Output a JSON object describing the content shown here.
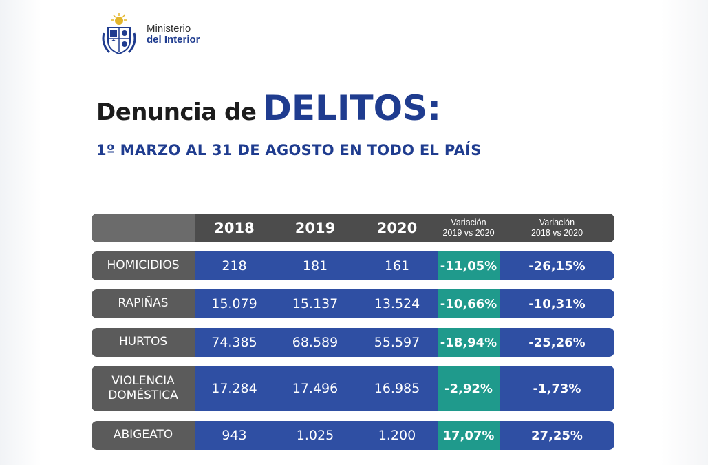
{
  "brand": {
    "line1": "Ministerio",
    "line2": "del Interior"
  },
  "title": {
    "prefix": "Denuncia de",
    "emphasis": "DELITOS:",
    "subtitle": "1º MARZO AL 31 DE AGOSTO EN TODO EL PAÍS"
  },
  "colors": {
    "brand_blue": "#1f3c8f",
    "cell_blue": "#2f4fa3",
    "teal": "#1f9a8c",
    "label_gray": "#5b5b5b",
    "header_gray": "#4c4c4c"
  },
  "chart_data": {
    "type": "table",
    "title": "Denuncia de DELITOS:",
    "subtitle": "1º MARZO AL 31 DE AGOSTO EN TODO EL PAÍS",
    "columns": [
      "2018",
      "2019",
      "2020",
      "Variación 2019 vs 2020",
      "Variación 2018 vs 2020"
    ],
    "header_variacion": "Variación",
    "header_var1_sub": "2019 vs 2020",
    "header_var2_sub": "2018 vs 2020",
    "rows": [
      {
        "label_lines": [
          "HOMICIDIOS"
        ],
        "v2018": "218",
        "v2019": "181",
        "v2020": "161",
        "var_19_20": "-11,05%",
        "var_18_20": "-26,15%"
      },
      {
        "label_lines": [
          "RAPIÑAS"
        ],
        "v2018": "15.079",
        "v2019": "15.137",
        "v2020": "13.524",
        "var_19_20": "-10,66%",
        "var_18_20": "-10,31%"
      },
      {
        "label_lines": [
          "HURTOS"
        ],
        "v2018": "74.385",
        "v2019": "68.589",
        "v2020": "55.597",
        "var_19_20": "-18,94%",
        "var_18_20": "-25,26%"
      },
      {
        "label_lines": [
          "VIOLENCIA",
          "DOMÉSTICA"
        ],
        "v2018": "17.284",
        "v2019": "17.496",
        "v2020": "16.985",
        "var_19_20": "-2,92%",
        "var_18_20": "-1,73%"
      },
      {
        "label_lines": [
          "ABIGEATO"
        ],
        "v2018": "943",
        "v2019": "1.025",
        "v2020": "1.200",
        "var_19_20": "17,07%",
        "var_18_20": "27,25%"
      }
    ]
  }
}
